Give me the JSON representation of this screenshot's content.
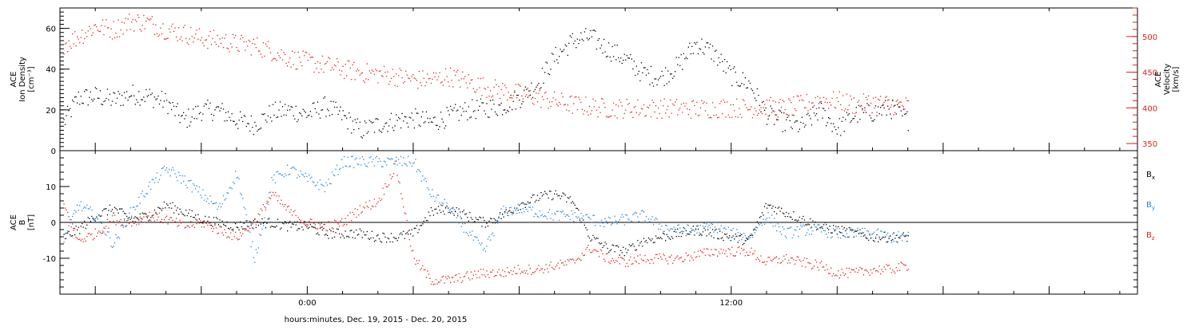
{
  "chart_data": [
    {
      "type": "scatter",
      "panel": "top",
      "ylabel_left": [
        "ACE",
        "Ion Density",
        "[cm⁻³]"
      ],
      "ylabel_right": [
        "ACE",
        "Velocity",
        "[km/s]"
      ],
      "left_axis": {
        "ylim": [
          0,
          70
        ],
        "ticks": [
          0,
          20,
          40,
          60
        ],
        "labels": [
          "0",
          "20",
          "40",
          "60"
        ]
      },
      "right_axis": {
        "ylim": [
          340,
          540
        ],
        "ticks": [
          350,
          400,
          450,
          500
        ],
        "labels": [
          "350",
          "400",
          "450",
          "500"
        ]
      },
      "xlim_hours": [
        -7,
        23.5
      ],
      "x_ticks_hours": [
        0,
        12
      ],
      "x_tick_labels": [
        "0:00",
        "12:00"
      ],
      "series": [
        {
          "axis": "left",
          "color": "#000000",
          "x_hours": [
            -6.9,
            -6.5,
            -6,
            -5.5,
            -5,
            -4.5,
            -4,
            -3.5,
            -3,
            -2.5,
            -2,
            -1.5,
            -1,
            -0.5,
            0,
            0.5,
            1,
            1.5,
            2,
            2.5,
            3,
            3.5,
            4,
            4.5,
            5,
            5.5,
            6,
            6.5,
            7,
            7.5,
            8,
            8.5,
            9,
            9.5,
            10,
            10.5,
            11,
            11.5,
            12,
            12.5,
            13,
            13.5,
            14,
            14.5,
            15,
            15.5,
            16,
            16.5,
            17
          ],
          "y": [
            14,
            26,
            27,
            25,
            28,
            27,
            24,
            15,
            20,
            20,
            15,
            13,
            19,
            20,
            18,
            22,
            17,
            10,
            13,
            15,
            16,
            14,
            17,
            20,
            21,
            22,
            26,
            33,
            46,
            54,
            56,
            50,
            45,
            38,
            36,
            42,
            53,
            48,
            37,
            33,
            18,
            14,
            12,
            20,
            11,
            18,
            19,
            21,
            15
          ],
          "jitter": 5
        },
        {
          "axis": "right",
          "color": "#e0211a",
          "x_hours": [
            -6.9,
            -6.5,
            -6,
            -5.5,
            -5,
            -4.5,
            -4,
            -3.5,
            -3,
            -2.5,
            -2,
            -1.5,
            -1,
            -0.5,
            0,
            0.5,
            1,
            1.5,
            2,
            2.5,
            3,
            3.5,
            4,
            4.5,
            5,
            5.5,
            6,
            6.5,
            7,
            7.5,
            8,
            8.5,
            9,
            9.5,
            10,
            10.5,
            11,
            11.5,
            12,
            12.5,
            13,
            13.5,
            14,
            14.5,
            15,
            15.5,
            16,
            16.5,
            17
          ],
          "y": [
            490,
            500,
            515,
            510,
            522,
            520,
            510,
            505,
            498,
            495,
            490,
            488,
            480,
            470,
            465,
            460,
            455,
            450,
            448,
            445,
            440,
            440,
            445,
            438,
            430,
            425,
            420,
            415,
            410,
            405,
            402,
            400,
            400,
            400,
            400,
            400,
            399,
            400,
            401,
            400,
            402,
            400,
            405,
            412,
            410,
            405,
            408,
            405,
            403
          ],
          "jitter": 14
        }
      ]
    },
    {
      "type": "scatter",
      "panel": "bottom",
      "ylabel_left": [
        "ACE",
        "B",
        "[nT]"
      ],
      "left_axis": {
        "ylim": [
          -20,
          20
        ],
        "ticks": [
          -10,
          0,
          10
        ],
        "labels": [
          "-10",
          "0",
          "10"
        ]
      },
      "xlim_hours": [
        -7,
        23.5
      ],
      "x_ticks_hours": [
        0,
        12
      ],
      "x_tick_labels": [
        "0:00",
        "12:00"
      ],
      "zero_line": true,
      "series": [
        {
          "name": "Bx",
          "label": "B",
          "sub": "x",
          "color": "#000000",
          "x_hours": [
            -6.9,
            -6.5,
            -6,
            -5.5,
            -5,
            -4.5,
            -4,
            -3.5,
            -3,
            -2.5,
            -2,
            -1.5,
            -1,
            -0.5,
            0,
            0.5,
            1,
            1.5,
            2,
            2.5,
            3,
            3.5,
            4,
            4.5,
            5,
            5.5,
            6,
            6.5,
            7,
            7.5,
            8,
            8.5,
            9,
            9.5,
            10,
            10.5,
            11,
            11.5,
            12,
            12.5,
            13,
            13.5,
            14,
            14.5,
            15,
            15.5,
            16,
            16.5,
            17
          ],
          "y": [
            -4,
            -2,
            2,
            4,
            1,
            2,
            5,
            3,
            1,
            0,
            -1,
            0,
            0,
            -1,
            -1,
            -3,
            -3,
            -3,
            -4,
            -4,
            -3,
            3,
            4,
            2,
            0,
            2,
            5,
            7,
            8,
            6,
            -4,
            -7,
            -8,
            -5,
            -4,
            -3,
            -2,
            -3,
            -4,
            -5,
            5,
            3,
            1,
            -1,
            -2,
            -3,
            -4,
            -4,
            -4
          ],
          "jitter": 1.4
        },
        {
          "name": "By",
          "label": "B",
          "sub": "y",
          "color": "#1f86d8",
          "x_hours": [
            -6.9,
            -6.5,
            -6,
            -5.5,
            -5,
            -4.5,
            -4,
            -3.5,
            -3,
            -2.5,
            -2,
            -1.5,
            -1,
            -0.5,
            0,
            0.5,
            1,
            1.5,
            2,
            2.5,
            3,
            3.5,
            4,
            4.5,
            5,
            5.5,
            6,
            6.5,
            7,
            7.5,
            8,
            8.5,
            9,
            9.5,
            10,
            10.5,
            11,
            11.5,
            12,
            12.5,
            13,
            13.5,
            14,
            14.5,
            15,
            15.5,
            16,
            16.5,
            17
          ],
          "y": [
            -5,
            5,
            2,
            -6,
            3,
            10,
            15,
            12,
            8,
            4,
            14,
            -10,
            12,
            15,
            12,
            10,
            17,
            17,
            17,
            17,
            17,
            8,
            4,
            -2,
            -8,
            3,
            4,
            3,
            2,
            2,
            1,
            0,
            1,
            2,
            -1,
            -2,
            -2,
            -1,
            -3,
            -4,
            2,
            -3,
            -2,
            -2,
            -3,
            -3,
            -3,
            -4,
            -4
          ],
          "jitter": 1.6
        },
        {
          "name": "Bz",
          "label": "B",
          "sub": "z",
          "color": "#e0211a",
          "x_hours": [
            -6.9,
            -6.5,
            -6,
            -5.5,
            -5,
            -4.5,
            -4,
            -3.5,
            -3,
            -2.5,
            -2,
            -1.5,
            -1,
            -0.5,
            0,
            0.5,
            1,
            1.5,
            2,
            2.5,
            3,
            3.5,
            4,
            4.5,
            5,
            5.5,
            6,
            6.5,
            7,
            7.5,
            8,
            8.5,
            9,
            9.5,
            10,
            10.5,
            11,
            11.5,
            12,
            12.5,
            13,
            13.5,
            14,
            14.5,
            15,
            15.5,
            16,
            16.5,
            17
          ],
          "y": [
            5,
            -5,
            -3,
            1,
            0,
            2,
            1,
            -1,
            0,
            -2,
            -4,
            0,
            8,
            3,
            0,
            -1,
            0,
            4,
            6,
            16,
            -10,
            -16,
            -16,
            -15,
            -14,
            -14,
            -13,
            -13,
            -12,
            -11,
            -7,
            -10,
            -11,
            -10,
            -10,
            -10,
            -9,
            -8,
            -8,
            -8,
            -11,
            -10,
            -11,
            -12,
            -14,
            -14,
            -13,
            -13,
            -12
          ],
          "jitter": 1.4
        }
      ]
    }
  ],
  "xlabel": "hours:minutes, Dec. 19, 2015 - Dec. 20, 2015"
}
